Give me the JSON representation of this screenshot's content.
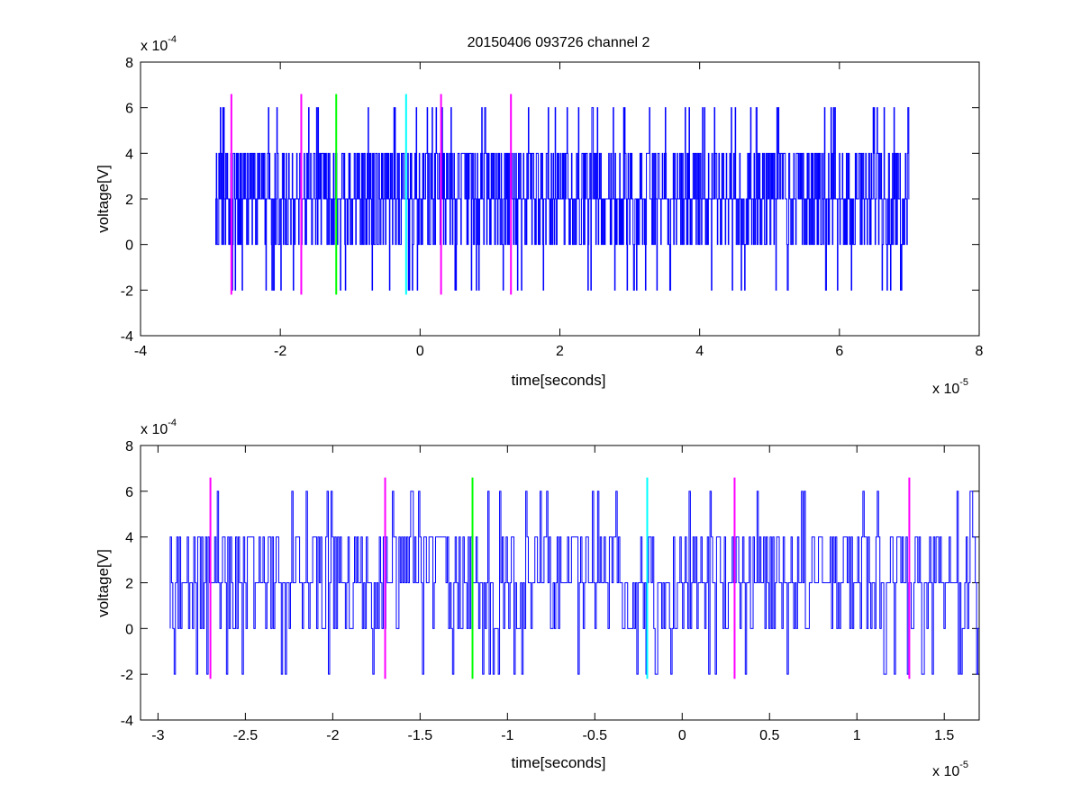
{
  "title": "20150406 093726 channel 2",
  "colors": {
    "signal": "#0000ff",
    "magenta": "#ff00ff",
    "green": "#00ff00",
    "cyan": "#00ffff"
  },
  "chart_data": [
    {
      "type": "line",
      "xlabel": "time[seconds]",
      "ylabel": "voltage[V]",
      "x_exponent": "x 10",
      "x_exponent_power": "-5",
      "y_exponent": "x 10",
      "y_exponent_power": "-4",
      "xlim": [
        -4,
        8
      ],
      "ylim": [
        -4,
        8
      ],
      "xticks": [
        -4,
        -2,
        0,
        2,
        4,
        6,
        8
      ],
      "xtick_labels": [
        "-4",
        "-2",
        "0",
        "2",
        "4",
        "6",
        "8"
      ],
      "yticks": [
        -4,
        -2,
        0,
        2,
        4,
        6,
        8
      ],
      "ytick_labels": [
        "-4",
        "-2",
        "0",
        "2",
        "4",
        "6",
        "8"
      ],
      "grid": false,
      "signal": {
        "x_start": -2.93,
        "x_end": 7.0,
        "levels": [
          -2,
          0,
          2,
          4,
          6
        ],
        "pattern": "stepwise noise mostly between 0 and 4, occasional spikes to 6 and -2"
      },
      "markers": [
        {
          "x": -2.7,
          "y_min": -2.2,
          "y_max": 6.6,
          "color": "magenta"
        },
        {
          "x": -1.7,
          "y_min": -2.2,
          "y_max": 6.6,
          "color": "magenta"
        },
        {
          "x": -1.2,
          "y_min": -2.2,
          "y_max": 6.6,
          "color": "green"
        },
        {
          "x": -0.2,
          "y_min": -2.2,
          "y_max": 6.6,
          "color": "cyan"
        },
        {
          "x": 0.3,
          "y_min": -2.2,
          "y_max": 6.6,
          "color": "magenta"
        },
        {
          "x": 1.3,
          "y_min": -2.2,
          "y_max": 6.6,
          "color": "magenta"
        }
      ]
    },
    {
      "type": "line",
      "xlabel": "time[seconds]",
      "ylabel": "voltage[V]",
      "x_exponent": "x 10",
      "x_exponent_power": "-5",
      "y_exponent": "x 10",
      "y_exponent_power": "-4",
      "xlim": [
        -3.1,
        1.7
      ],
      "ylim": [
        -4,
        8
      ],
      "xticks": [
        -3,
        -2.5,
        -2,
        -1.5,
        -1,
        -0.5,
        0,
        0.5,
        1,
        1.5
      ],
      "xtick_labels": [
        "-3",
        "-2.5",
        "-2",
        "-1.5",
        "-1",
        "-0.5",
        "0",
        "0.5",
        "1",
        "1.5"
      ],
      "yticks": [
        -4,
        -2,
        0,
        2,
        4,
        6,
        8
      ],
      "ytick_labels": [
        "-4",
        "-2",
        "0",
        "2",
        "4",
        "6",
        "8"
      ],
      "grid": false,
      "signal": {
        "x_start": -2.93,
        "x_end": 1.7,
        "levels": [
          -2,
          0,
          2,
          4,
          6
        ],
        "pattern": "zoomed view of same stepwise noise"
      },
      "markers": [
        {
          "x": -2.7,
          "y_min": -2.2,
          "y_max": 6.6,
          "color": "magenta"
        },
        {
          "x": -1.7,
          "y_min": -2.2,
          "y_max": 6.6,
          "color": "magenta"
        },
        {
          "x": -1.2,
          "y_min": -2.2,
          "y_max": 6.6,
          "color": "green"
        },
        {
          "x": -0.2,
          "y_min": -2.2,
          "y_max": 6.6,
          "color": "cyan"
        },
        {
          "x": 0.3,
          "y_min": -2.2,
          "y_max": 6.6,
          "color": "magenta"
        },
        {
          "x": 1.3,
          "y_min": -2.2,
          "y_max": 6.6,
          "color": "magenta"
        }
      ]
    }
  ]
}
